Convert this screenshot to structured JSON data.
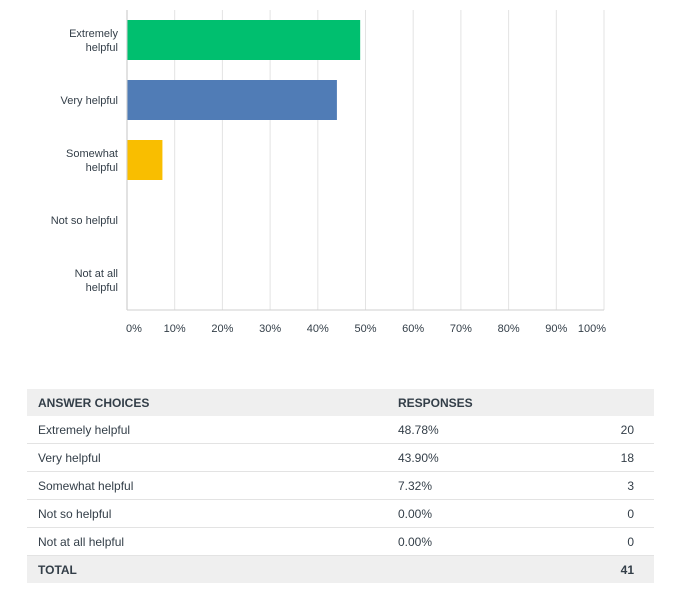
{
  "chart_data": {
    "type": "bar",
    "orientation": "horizontal",
    "categories": [
      "Extremely helpful",
      "Very helpful",
      "Somewhat helpful",
      "Not so helpful",
      "Not at all helpful"
    ],
    "category_label_lines": [
      [
        "Extremely",
        "helpful"
      ],
      [
        "Very helpful"
      ],
      [
        "Somewhat",
        "helpful"
      ],
      [
        "Not so helpful"
      ],
      [
        "Not at all",
        "helpful"
      ]
    ],
    "values": [
      48.78,
      43.9,
      7.32,
      0.0,
      0.0
    ],
    "colors": [
      "#00bf6f",
      "#507cb6",
      "#f9be00",
      "#6bc8cd",
      "#ff8b4f"
    ],
    "xlim": [
      0,
      100
    ],
    "xticks": [
      "0%",
      "10%",
      "20%",
      "30%",
      "40%",
      "50%",
      "60%",
      "70%",
      "80%",
      "90%",
      "100%"
    ],
    "grid": true,
    "gridline_color": "#e3e3e3"
  },
  "table": {
    "headers": {
      "choice": "ANSWER CHOICES",
      "responses": "RESPONSES",
      "count": ""
    },
    "rows": [
      {
        "choice": "Extremely helpful",
        "percent": "48.78%",
        "count": "20"
      },
      {
        "choice": "Very helpful",
        "percent": "43.90%",
        "count": "18"
      },
      {
        "choice": "Somewhat helpful",
        "percent": "7.32%",
        "count": "3"
      },
      {
        "choice": "Not so helpful",
        "percent": "0.00%",
        "count": "0"
      },
      {
        "choice": "Not at all helpful",
        "percent": "0.00%",
        "count": "0"
      }
    ],
    "total": {
      "label": "TOTAL",
      "percent": "",
      "count": "41"
    }
  }
}
